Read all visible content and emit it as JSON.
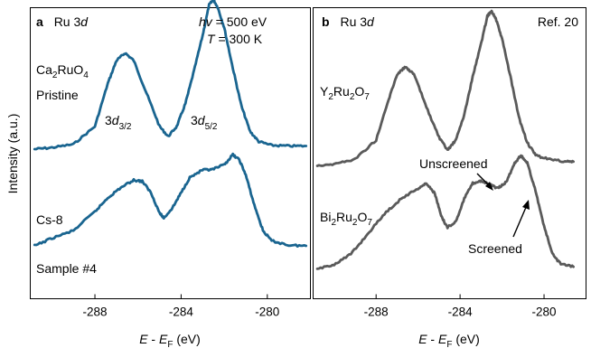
{
  "figure": {
    "ylabel": "Intensity (a.u.)",
    "xlabel": {
      "var_e": "E",
      "sep": " - ",
      "var_ef": "E",
      "sub": "F",
      "unit": " (eV)"
    }
  },
  "colors": {
    "panel_a": "#1a6590",
    "panel_b": "#5a5a5a",
    "axis": "#000000"
  },
  "chart_data": [
    {
      "type": "line",
      "panel": "a",
      "panel_letter": "a",
      "element": "Ru 3",
      "element_orbital": "d",
      "hv_label": "hv",
      "hv_value": " = 500 eV",
      "t_label": "T",
      "t_value": " = 300 K",
      "xlim": [
        -291,
        -278
      ],
      "xticks": [
        -288,
        -284,
        -280
      ],
      "xtick_labels": [
        "-288",
        "-284",
        "-280"
      ],
      "labels": {
        "compound1_parts": [
          "Ca",
          "2",
          "RuO",
          "4"
        ],
        "pristine": "Pristine",
        "peak32_main": "3",
        "peak32_d": "d",
        "peak32_sub": "3/2",
        "peak52_main": "3",
        "peak52_d": "d",
        "peak52_sub": "5/2",
        "cs8": "Cs-8",
        "sample4": "Sample #4"
      },
      "series": [
        {
          "name": "Pristine",
          "points": [
            [
              -290.8,
              0.0
            ],
            [
              -290.0,
              0.012
            ],
            [
              -289.0,
              0.038
            ],
            [
              -288.0,
              0.18
            ],
            [
              -287.4,
              0.52
            ],
            [
              -287.0,
              0.7
            ],
            [
              -286.6,
              0.76
            ],
            [
              -286.2,
              0.7
            ],
            [
              -285.6,
              0.44
            ],
            [
              -285.0,
              0.18
            ],
            [
              -284.6,
              0.1
            ],
            [
              -284.2,
              0.18
            ],
            [
              -283.8,
              0.36
            ],
            [
              -283.4,
              0.62
            ],
            [
              -283.0,
              0.9
            ],
            [
              -282.7,
              1.14
            ],
            [
              -282.5,
              1.18
            ],
            [
              -282.3,
              1.12
            ],
            [
              -282.0,
              0.96
            ],
            [
              -281.6,
              0.64
            ],
            [
              -281.2,
              0.34
            ],
            [
              -280.8,
              0.14
            ],
            [
              -280.4,
              0.06
            ],
            [
              -279.8,
              0.03
            ],
            [
              -279.0,
              0.025
            ],
            [
              -278.2,
              0.025
            ]
          ]
        },
        {
          "name": "Cs-8",
          "points": [
            [
              -290.8,
              0.0
            ],
            [
              -290.0,
              0.06
            ],
            [
              -289.0,
              0.12
            ],
            [
              -288.0,
              0.27
            ],
            [
              -287.4,
              0.38
            ],
            [
              -286.8,
              0.46
            ],
            [
              -286.2,
              0.52
            ],
            [
              -285.8,
              0.51
            ],
            [
              -285.4,
              0.42
            ],
            [
              -285.0,
              0.26
            ],
            [
              -284.8,
              0.22
            ],
            [
              -284.4,
              0.3
            ],
            [
              -284.0,
              0.42
            ],
            [
              -283.6,
              0.54
            ],
            [
              -283.0,
              0.6
            ],
            [
              -282.6,
              0.6
            ],
            [
              -282.0,
              0.64
            ],
            [
              -281.6,
              0.72
            ],
            [
              -281.3,
              0.68
            ],
            [
              -281.0,
              0.56
            ],
            [
              -280.6,
              0.32
            ],
            [
              -280.2,
              0.12
            ],
            [
              -279.8,
              0.04
            ],
            [
              -279.0,
              0.005
            ],
            [
              -278.2,
              0.0
            ]
          ]
        }
      ]
    },
    {
      "type": "line",
      "panel": "b",
      "panel_letter": "b",
      "element": "Ru 3",
      "element_orbital": "d",
      "reference": "Ref. 20",
      "xlim": [
        -291,
        -278
      ],
      "xticks": [
        -288,
        -284,
        -280
      ],
      "xtick_labels": [
        "-288",
        "-284",
        "-280"
      ],
      "labels": {
        "compound1_parts": [
          "Y",
          "2",
          "Ru",
          "2",
          "O",
          "7"
        ],
        "compound2_parts": [
          "Bi",
          "2",
          "Ru",
          "2",
          "O",
          "7"
        ],
        "unscreened": "Unscreened",
        "screened": "Screened"
      },
      "series": [
        {
          "name": "Y2Ru2O7",
          "points": [
            [
              -290.8,
              0.0
            ],
            [
              -290.0,
              0.01
            ],
            [
              -289.0,
              0.05
            ],
            [
              -288.0,
              0.2
            ],
            [
              -287.4,
              0.52
            ],
            [
              -287.0,
              0.72
            ],
            [
              -286.6,
              0.78
            ],
            [
              -286.2,
              0.72
            ],
            [
              -285.6,
              0.46
            ],
            [
              -285.0,
              0.22
            ],
            [
              -284.6,
              0.12
            ],
            [
              -284.2,
              0.2
            ],
            [
              -283.8,
              0.4
            ],
            [
              -283.4,
              0.7
            ],
            [
              -283.0,
              0.96
            ],
            [
              -282.7,
              1.18
            ],
            [
              -282.5,
              1.22
            ],
            [
              -282.3,
              1.16
            ],
            [
              -282.0,
              1.0
            ],
            [
              -281.6,
              0.7
            ],
            [
              -281.2,
              0.38
            ],
            [
              -280.8,
              0.18
            ],
            [
              -280.4,
              0.08
            ],
            [
              -279.8,
              0.05
            ],
            [
              -279.0,
              0.03
            ],
            [
              -278.6,
              0.03
            ]
          ]
        },
        {
          "name": "Bi2Ru2O7",
          "points": [
            [
              -290.8,
              0.0
            ],
            [
              -290.0,
              0.04
            ],
            [
              -289.2,
              0.12
            ],
            [
              -288.4,
              0.28
            ],
            [
              -287.6,
              0.44
            ],
            [
              -286.8,
              0.56
            ],
            [
              -286.0,
              0.64
            ],
            [
              -285.6,
              0.68
            ],
            [
              -285.2,
              0.6
            ],
            [
              -284.9,
              0.42
            ],
            [
              -284.6,
              0.33
            ],
            [
              -284.2,
              0.38
            ],
            [
              -283.8,
              0.56
            ],
            [
              -283.4,
              0.68
            ],
            [
              -283.0,
              0.7
            ],
            [
              -282.6,
              0.67
            ],
            [
              -282.2,
              0.64
            ],
            [
              -281.8,
              0.69
            ],
            [
              -281.4,
              0.84
            ],
            [
              -281.1,
              0.9
            ],
            [
              -280.8,
              0.84
            ],
            [
              -280.4,
              0.62
            ],
            [
              -280.0,
              0.34
            ],
            [
              -279.6,
              0.12
            ],
            [
              -279.2,
              0.04
            ],
            [
              -278.6,
              0.02
            ]
          ]
        }
      ]
    }
  ]
}
